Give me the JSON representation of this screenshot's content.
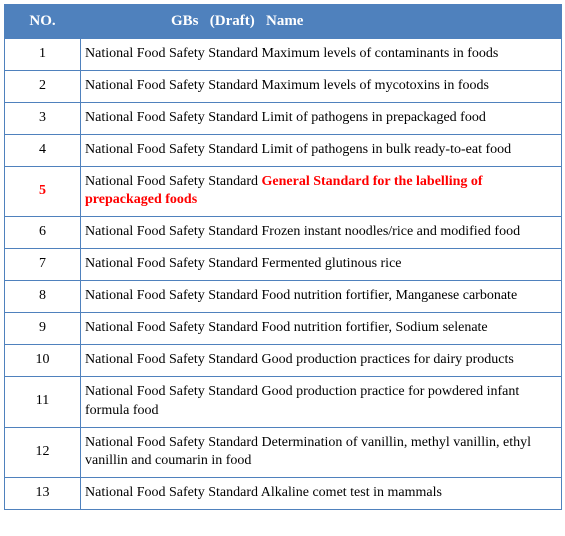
{
  "table": {
    "header": {
      "no": "NO.",
      "name": "GBs   (Draft)   Name"
    },
    "colors": {
      "header_bg": "#4f81bd",
      "header_text": "#ffffff",
      "border": "#4f81bd",
      "highlight": "#ff0000",
      "body_text": "#000000"
    },
    "col_widths": {
      "no": 76,
      "name": 481
    },
    "rows": [
      {
        "no": "1",
        "prefix": "National Food Safety Standard Maximum levels of contaminants in foods",
        "highlight": "",
        "no_highlight": false
      },
      {
        "no": "2",
        "prefix": "National Food Safety Standard Maximum levels of mycotoxins in foods",
        "highlight": "",
        "no_highlight": false
      },
      {
        "no": "3",
        "prefix": "National Food Safety Standard Limit of pathogens in prepackaged food",
        "highlight": "",
        "no_highlight": false
      },
      {
        "no": "4",
        "prefix": "National Food Safety Standard Limit of pathogens in bulk ready-to-eat food",
        "highlight": "",
        "no_highlight": false
      },
      {
        "no": "5",
        "prefix": "National Food Safety Standard ",
        "highlight": "General Standard for the labelling of prepackaged foods",
        "no_highlight": true
      },
      {
        "no": "6",
        "prefix": "National Food Safety Standard Frozen instant noodles/rice and modified food",
        "highlight": "",
        "no_highlight": false
      },
      {
        "no": "7",
        "prefix": "National Food Safety Standard Fermented glutinous rice",
        "highlight": "",
        "no_highlight": false
      },
      {
        "no": "8",
        "prefix": "National Food Safety Standard Food nutrition fortifier, Manganese carbonate",
        "highlight": "",
        "no_highlight": false
      },
      {
        "no": "9",
        "prefix": "National Food Safety Standard Food nutrition fortifier, Sodium selenate",
        "highlight": "",
        "no_highlight": false
      },
      {
        "no": "10",
        "prefix": "National Food Safety Standard Good production practices for dairy products",
        "highlight": "",
        "no_highlight": false
      },
      {
        "no": "11",
        "prefix": "National Food Safety Standard Good production practice for powdered infant formula food",
        "highlight": "",
        "no_highlight": false
      },
      {
        "no": "12",
        "prefix": "National Food Safety Standard Determination of vanillin, methyl vanillin, ethyl vanillin and coumarin in food",
        "highlight": "",
        "no_highlight": false
      },
      {
        "no": "13",
        "prefix": "National Food Safety Standard Alkaline comet test in mammals",
        "highlight": "",
        "no_highlight": false
      }
    ]
  }
}
